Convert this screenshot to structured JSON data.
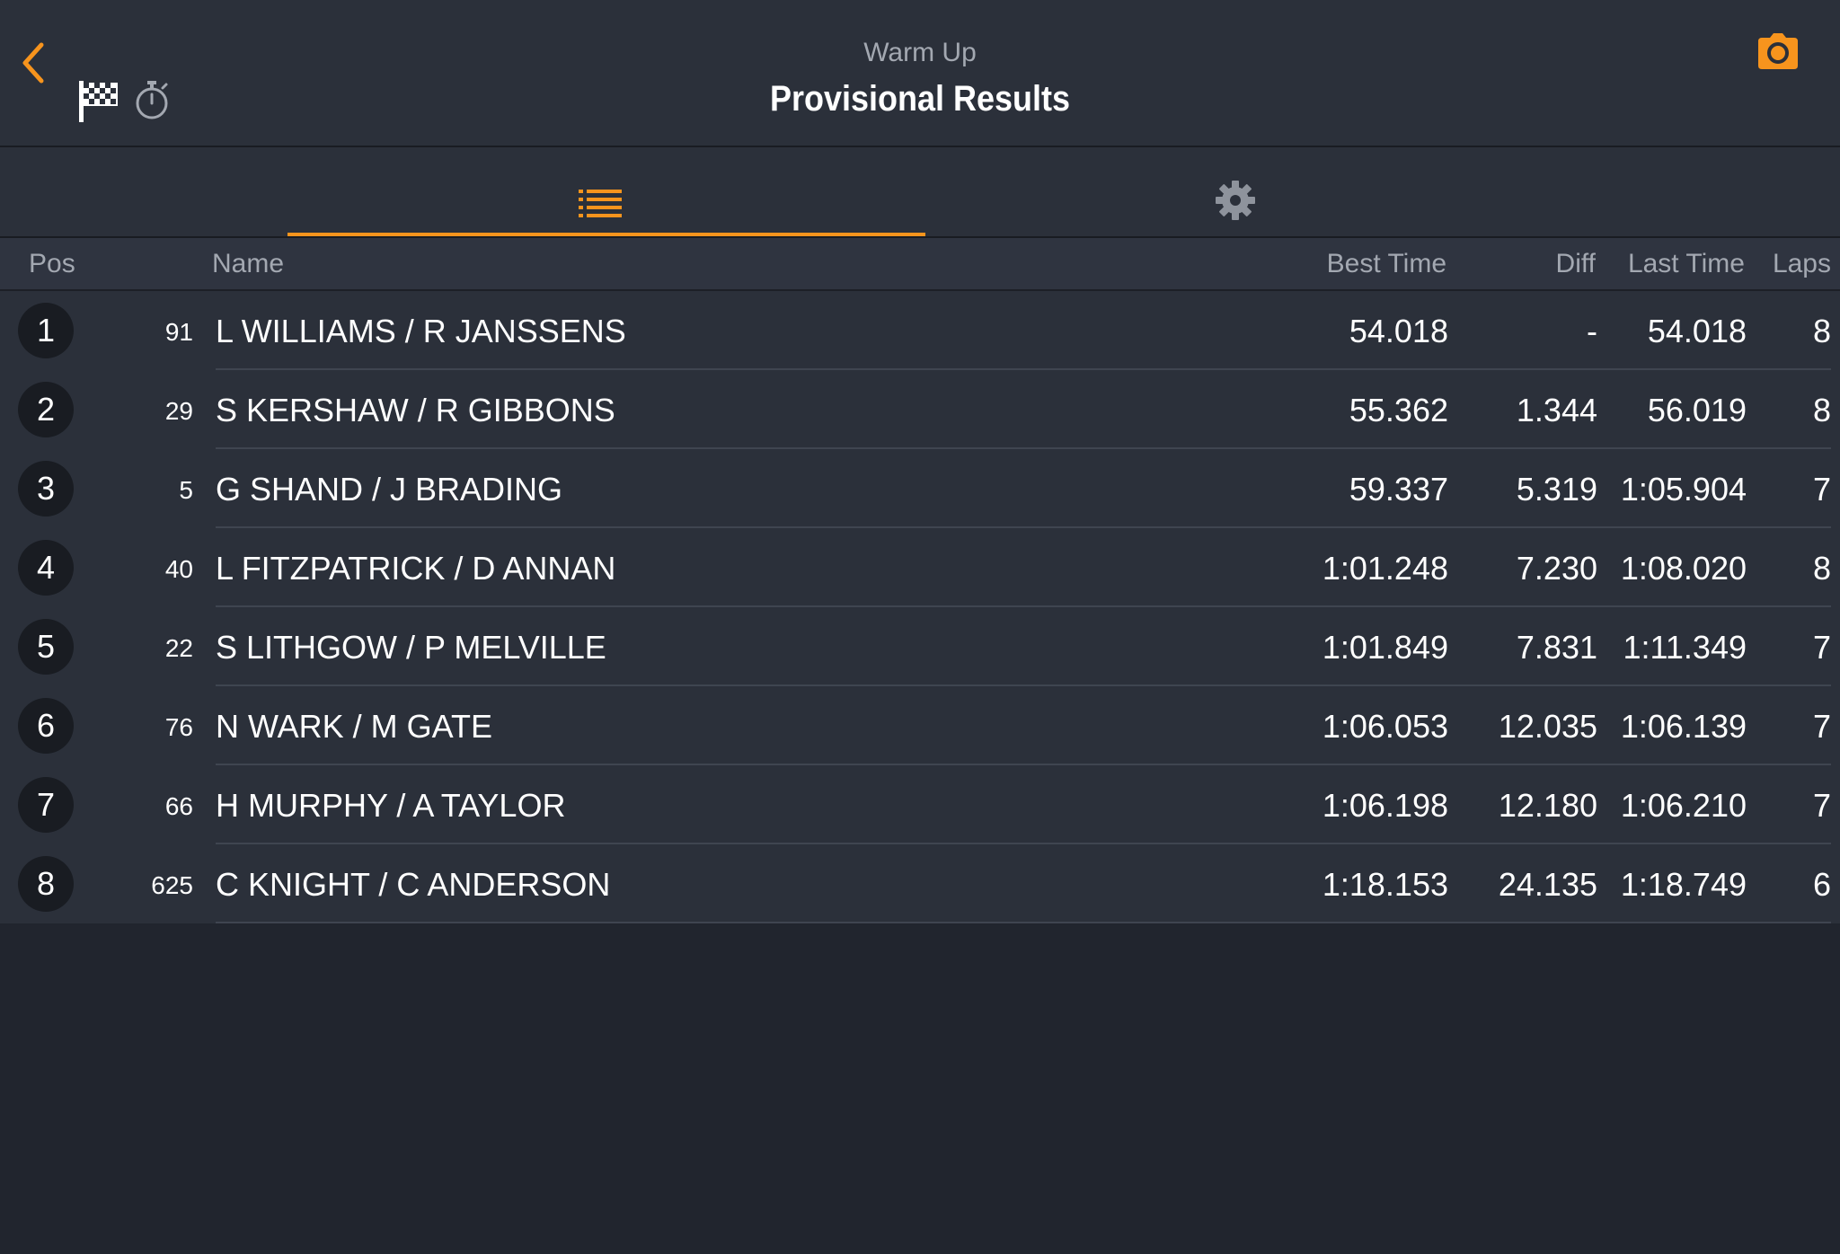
{
  "header": {
    "subtitle": "Warm Up",
    "title": "Provisional Results",
    "back_icon": "chevron-left-icon",
    "flag_icon": "checkered-flag-icon",
    "stopwatch_icon": "stopwatch-icon",
    "camera_icon": "camera-icon"
  },
  "tabs": [
    {
      "icon": "list-icon",
      "active": true
    },
    {
      "icon": "gear-icon",
      "active": false
    }
  ],
  "columns": {
    "pos": "Pos",
    "name": "Name",
    "best": "Best Time",
    "diff": "Diff",
    "last": "Last Time",
    "laps": "Laps"
  },
  "rows": [
    {
      "pos": "1",
      "num": "91",
      "name": "L WILLIAMS / R JANSSENS",
      "best": "54.018",
      "diff": "-",
      "last": "54.018",
      "laps": "8"
    },
    {
      "pos": "2",
      "num": "29",
      "name": "S KERSHAW / R GIBBONS",
      "best": "55.362",
      "diff": "1.344",
      "last": "56.019",
      "laps": "8"
    },
    {
      "pos": "3",
      "num": "5",
      "name": "G SHAND / J BRADING",
      "best": "59.337",
      "diff": "5.319",
      "last": "1:05.904",
      "laps": "7"
    },
    {
      "pos": "4",
      "num": "40",
      "name": "L FITZPATRICK / D ANNAN",
      "best": "1:01.248",
      "diff": "7.230",
      "last": "1:08.020",
      "laps": "8"
    },
    {
      "pos": "5",
      "num": "22",
      "name": "S LITHGOW / P MELVILLE",
      "best": "1:01.849",
      "diff": "7.831",
      "last": "1:11.349",
      "laps": "7"
    },
    {
      "pos": "6",
      "num": "76",
      "name": "N WARK / M GATE",
      "best": "1:06.053",
      "diff": "12.035",
      "last": "1:06.139",
      "laps": "7"
    },
    {
      "pos": "7",
      "num": "66",
      "name": "H MURPHY / A TAYLOR",
      "best": "1:06.198",
      "diff": "12.180",
      "last": "1:06.210",
      "laps": "7"
    },
    {
      "pos": "8",
      "num": "625",
      "name": "C KNIGHT / C ANDERSON",
      "best": "1:18.153",
      "diff": "24.135",
      "last": "1:18.749",
      "laps": "6"
    }
  ],
  "colors": {
    "accent": "#f7941d",
    "background": "#21252e",
    "panel": "#2b303a",
    "muted_text": "#a3a8b1"
  }
}
